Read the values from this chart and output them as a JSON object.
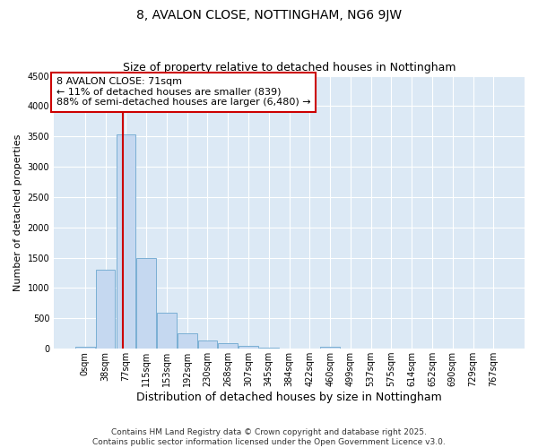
{
  "title": "8, AVALON CLOSE, NOTTINGHAM, NG6 9JW",
  "subtitle": "Size of property relative to detached houses in Nottingham",
  "xlabel": "Distribution of detached houses by size in Nottingham",
  "ylabel": "Number of detached properties",
  "bar_labels": [
    "0sqm",
    "38sqm",
    "77sqm",
    "115sqm",
    "153sqm",
    "192sqm",
    "230sqm",
    "268sqm",
    "307sqm",
    "345sqm",
    "384sqm",
    "422sqm",
    "460sqm",
    "499sqm",
    "537sqm",
    "575sqm",
    "614sqm",
    "652sqm",
    "690sqm",
    "729sqm",
    "767sqm"
  ],
  "bar_values": [
    30,
    1300,
    3530,
    1500,
    600,
    250,
    130,
    90,
    40,
    10,
    5,
    0,
    25,
    0,
    0,
    0,
    0,
    0,
    0,
    0,
    0
  ],
  "bar_color": "#c5d8f0",
  "bar_edge_color": "#7aafd4",
  "vline_color": "#cc0000",
  "annotation_text": "8 AVALON CLOSE: 71sqm\n← 11% of detached houses are smaller (839)\n88% of semi-detached houses are larger (6,480) →",
  "annotation_box_color": "#cc0000",
  "ylim": [
    0,
    4500
  ],
  "yticks": [
    0,
    500,
    1000,
    1500,
    2000,
    2500,
    3000,
    3500,
    4000,
    4500
  ],
  "fig_bg": "#ffffff",
  "plot_bg": "#dce9f5",
  "grid_color": "#ffffff",
  "footer": "Contains HM Land Registry data © Crown copyright and database right 2025.\nContains public sector information licensed under the Open Government Licence v3.0.",
  "title_fontsize": 10,
  "subtitle_fontsize": 9,
  "xlabel_fontsize": 9,
  "ylabel_fontsize": 8,
  "tick_fontsize": 7,
  "annotation_fontsize": 8,
  "footer_fontsize": 6.5
}
